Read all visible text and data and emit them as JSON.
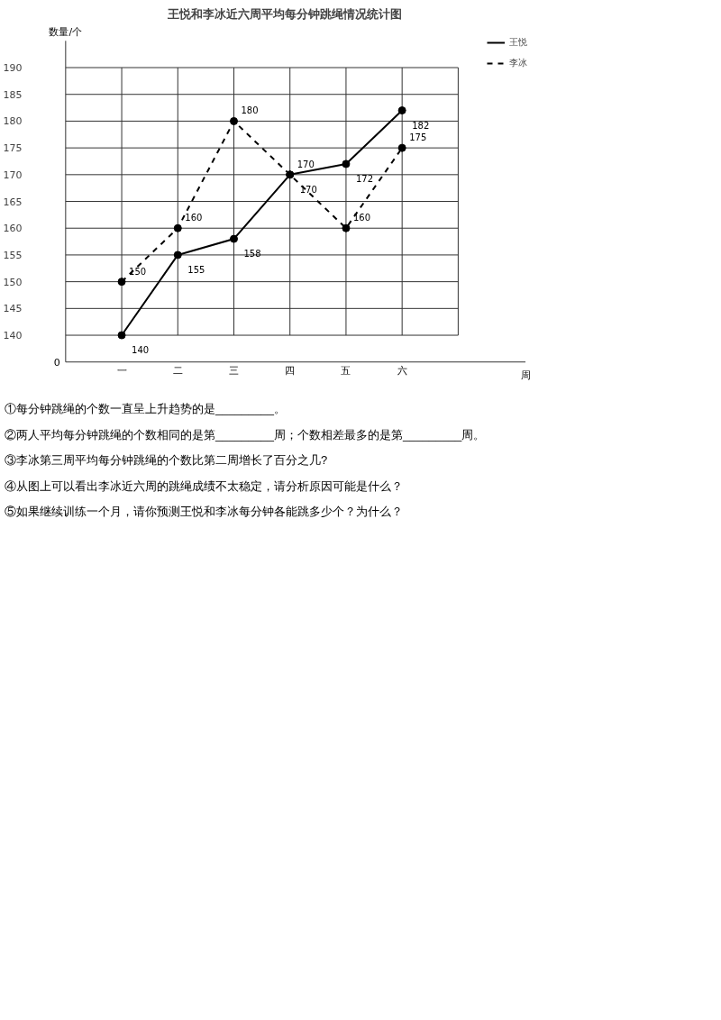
{
  "chart_data": {
    "type": "line",
    "title": "王悦和李冰近六周平均每分钟跳绳情况统计图",
    "ylabel": "数量/个",
    "categories": [
      "一",
      "二",
      "三",
      "四",
      "五",
      "六"
    ],
    "series": [
      {
        "name": "王悦",
        "color": "#000000",
        "line_style": "solid",
        "values": [
          140,
          155,
          158,
          170,
          172,
          182
        ]
      },
      {
        "name": "李冰",
        "color": "#000000",
        "line_style": "dashed",
        "values": [
          150,
          160,
          180,
          170,
          160,
          175
        ]
      }
    ],
    "ylim": [
      135,
      195
    ],
    "yticks": [
      140,
      145,
      150,
      155,
      160,
      165,
      170,
      175,
      180,
      185,
      190
    ],
    "grid": true,
    "marker": "circle",
    "legend": "top right",
    "data_labels": true,
    "annotations": [
      "0",
      "周",
      "①每分钟跳绳的个数一直呈上升趋势的是_________。",
      "②两人平均每分钟跳绳的个数相同的是第_________周；个数相差最多的是第_________周。",
      "③李冰第三周平均每分钟跳绳的个数比第二周增长了百分之几?",
      "④从图上可以看出李冰近六周的跳绳成绩不太稳定，请分析原因可能是什么？",
      "⑤如果继续训练一个月，请你预测王悦和李冰每分钟各能跳多少个？为什么？"
    ]
  }
}
